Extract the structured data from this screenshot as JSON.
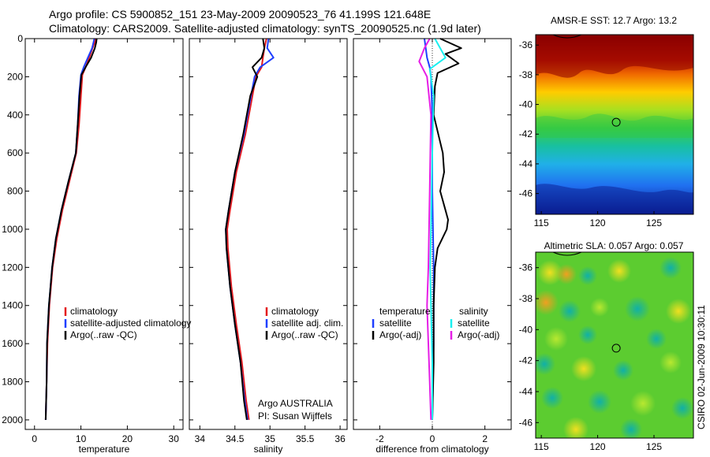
{
  "header": {
    "line1": "Argo profile: CS 5900852_151 23-May-2009 20090523_76 41.199S 121.648E",
    "line2": "Climatology: CARS2009. Satellite-adjusted climatology: synTS_20090525.nc (1.9d later)"
  },
  "credit": {
    "institution": "Argo AUSTRALIA",
    "pi": "PI: Susan Wijffels",
    "stamp": "CSIRO 02-Jun-2009 10:30:11"
  },
  "colors": {
    "red": "#e31a1c",
    "blue": "#1f3fff",
    "black": "#000000",
    "cyan": "#19f0f0",
    "magenta": "#e61ee6"
  },
  "chart_data": [
    {
      "type": "line",
      "id": "temperature",
      "xlabel": "temperature",
      "xlim": [
        -2,
        32
      ],
      "ylim": [
        2050,
        0
      ],
      "xticks": [
        0,
        10,
        20,
        30
      ],
      "yticks": [
        0,
        200,
        400,
        600,
        800,
        1000,
        1200,
        1400,
        1600,
        1800,
        2000
      ],
      "legend": [
        "climatology",
        "satellite-adjusted climatology",
        "Argo(..raw -QC)"
      ],
      "series": [
        {
          "name": "climatology",
          "color": "#e31a1c",
          "x": [
            13.2,
            13.0,
            12.5,
            11.8,
            11.0,
            10.3,
            10.0,
            9.6,
            9.0,
            7.5,
            6.0,
            4.8,
            3.9,
            3.2,
            2.8,
            2.6,
            2.5,
            2.4
          ],
          "y": [
            0,
            20,
            50,
            100,
            150,
            190,
            300,
            450,
            600,
            750,
            900,
            1050,
            1200,
            1400,
            1600,
            1800,
            1900,
            2000
          ]
        },
        {
          "name": "satellite-adjusted climatology",
          "color": "#1f3fff",
          "x": [
            12.9,
            12.7,
            12.4,
            11.5,
            10.6,
            10.0,
            9.6,
            9.3,
            8.9,
            7.3,
            5.8,
            4.6,
            3.8,
            3.1,
            2.7,
            2.6,
            2.5,
            2.4
          ],
          "y": [
            0,
            20,
            50,
            100,
            150,
            190,
            300,
            450,
            600,
            750,
            900,
            1050,
            1200,
            1400,
            1600,
            1800,
            1900,
            2000
          ]
        },
        {
          "name": "Argo(..raw -QC)",
          "color": "#000000",
          "x": [
            13.4,
            13.3,
            13.0,
            12.2,
            11.0,
            10.1,
            9.7,
            9.3,
            8.9,
            7.3,
            5.8,
            4.6,
            3.8,
            3.1,
            2.7,
            2.6,
            2.5,
            2.4
          ],
          "y": [
            0,
            20,
            50,
            100,
            150,
            190,
            300,
            450,
            600,
            750,
            900,
            1050,
            1200,
            1400,
            1600,
            1800,
            1900,
            2000
          ]
        }
      ]
    },
    {
      "type": "line",
      "id": "salinity",
      "xlabel": "salinity",
      "xlim": [
        33.85,
        36.1
      ],
      "ylim": [
        2050,
        0
      ],
      "xticks": [
        34,
        34.5,
        35,
        35.5,
        36
      ],
      "yticks": [],
      "legend": [
        "climatology",
        "satellite adj. clim.",
        "Argo(..raw -QC)"
      ],
      "series": [
        {
          "name": "climatology",
          "color": "#e31a1c",
          "x": [
            34.95,
            34.92,
            34.9,
            34.88,
            34.8,
            34.75,
            34.65,
            34.52,
            34.43,
            34.39,
            34.4,
            34.45,
            34.52,
            34.6,
            34.66,
            34.7
          ],
          "y": [
            0,
            50,
            100,
            150,
            200,
            300,
            500,
            700,
            900,
            1000,
            1100,
            1300,
            1500,
            1700,
            1900,
            2000
          ]
        },
        {
          "name": "satellite adj. clim.",
          "color": "#1f3fff",
          "x": [
            34.98,
            34.96,
            35.05,
            34.86,
            34.78,
            34.73,
            34.63,
            34.5,
            34.41,
            34.37,
            34.38,
            34.43,
            34.5,
            34.58,
            34.64,
            34.68
          ],
          "y": [
            0,
            50,
            100,
            150,
            200,
            300,
            500,
            700,
            900,
            1000,
            1100,
            1300,
            1500,
            1700,
            1900,
            2000
          ]
        },
        {
          "name": "Argo(..raw -QC)",
          "color": "#000000",
          "x": [
            34.9,
            34.92,
            34.88,
            34.75,
            34.82,
            34.72,
            34.62,
            34.5,
            34.41,
            34.37,
            34.38,
            34.43,
            34.5,
            34.58,
            34.63,
            34.67
          ],
          "y": [
            0,
            50,
            100,
            150,
            200,
            300,
            500,
            700,
            900,
            1000,
            1100,
            1300,
            1500,
            1700,
            1900,
            2000
          ]
        }
      ]
    },
    {
      "type": "line",
      "id": "difference",
      "xlabel": "difference from climatology",
      "xlim": [
        -3,
        3
      ],
      "ylim": [
        2050,
        0
      ],
      "xticks": [
        -2,
        0,
        2
      ],
      "yticks": [],
      "legend_groups": [
        {
          "title": "temperature",
          "entries": [
            "satellite",
            "Argo(-adj)"
          ]
        },
        {
          "title": "salinity",
          "entries": [
            "satellite",
            "Argo(-adj)"
          ]
        }
      ],
      "series": [
        {
          "name": "temperature satellite",
          "color": "#1f3fff",
          "x": [
            -0.3,
            -0.25,
            -0.2,
            -0.1,
            -0.05,
            0.0,
            0.0,
            0.05,
            0.05,
            0.0
          ],
          "y": [
            0,
            50,
            100,
            150,
            200,
            400,
            800,
            1200,
            1600,
            2000
          ]
        },
        {
          "name": "temperature Argo(-adj)",
          "color": "#000000",
          "x": [
            0.3,
            1.1,
            0.5,
            1.0,
            0.2,
            0.1,
            0.05,
            0.4,
            0.45,
            0.3,
            0.5,
            0.6,
            0.55,
            0.2,
            0.1,
            0.05,
            0.05,
            0.0
          ],
          "y": [
            0,
            50,
            80,
            130,
            180,
            250,
            400,
            600,
            700,
            800,
            900,
            950,
            1000,
            1100,
            1200,
            1400,
            1700,
            2000
          ]
        },
        {
          "name": "salinity satellite",
          "color": "#19f0f0",
          "x": [
            0.1,
            0.3,
            0.5,
            -0.1,
            0.05,
            0.0,
            -0.05,
            -0.08,
            -0.05,
            0.0,
            0.0
          ],
          "y": [
            0,
            50,
            100,
            160,
            300,
            600,
            1000,
            1200,
            1400,
            1700,
            2000
          ]
        },
        {
          "name": "salinity Argo(-adj)",
          "color": "#e61ee6",
          "x": [
            -0.1,
            -0.3,
            -0.5,
            -0.2,
            -0.05,
            -0.1,
            -0.15,
            -0.2,
            -0.15,
            -0.1,
            -0.05
          ],
          "y": [
            0,
            50,
            120,
            200,
            400,
            800,
            1200,
            1400,
            1600,
            1800,
            2000
          ]
        }
      ]
    },
    {
      "type": "heatmap",
      "id": "sst",
      "title": "AMSR-E SST: 12.7 Argo: 13.2",
      "xlim": [
        114.5,
        128.5
      ],
      "ylim": [
        -47.4,
        -35.3
      ],
      "xticks": [
        115,
        120,
        125
      ],
      "yticks": [
        -36,
        -38,
        -40,
        -42,
        -44,
        -46
      ],
      "marker": {
        "lon": 121.648,
        "lat": -41.199
      }
    },
    {
      "type": "heatmap",
      "id": "sla",
      "title": "Altimetric SLA: 0.057 Argo: 0.057",
      "xlim": [
        114.5,
        128.5
      ],
      "ylim": [
        -47.0,
        -35.0
      ],
      "xticks": [
        115,
        120,
        125
      ],
      "yticks": [
        -36,
        -38,
        -40,
        -42,
        -44,
        -46
      ],
      "marker": {
        "lon": 121.648,
        "lat": -41.199
      }
    }
  ]
}
